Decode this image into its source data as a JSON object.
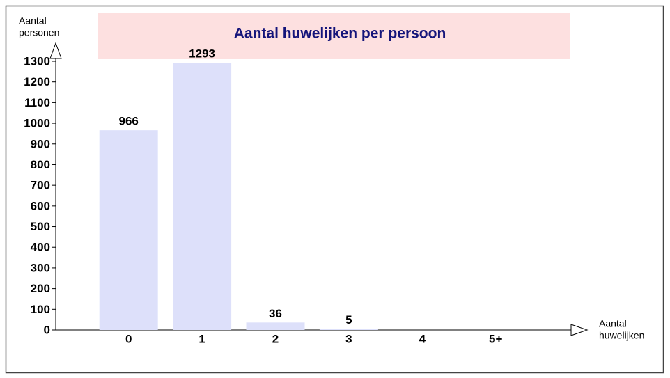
{
  "chart_data": {
    "type": "bar",
    "title": "Aantal huwelijken per persoon",
    "y_label": [
      "Aantal",
      "personen"
    ],
    "x_label": [
      "Aantal",
      "huwelijken"
    ],
    "categories": [
      "0",
      "1",
      "2",
      "3",
      "4",
      "5+"
    ],
    "values": [
      966,
      1293,
      36,
      5,
      null,
      null
    ],
    "color": "#dde0fa",
    "ylim": [
      0,
      1300
    ],
    "yticks": [
      0,
      100,
      200,
      300,
      400,
      500,
      600,
      700,
      800,
      900,
      1000,
      1100,
      1200,
      1300
    ]
  }
}
